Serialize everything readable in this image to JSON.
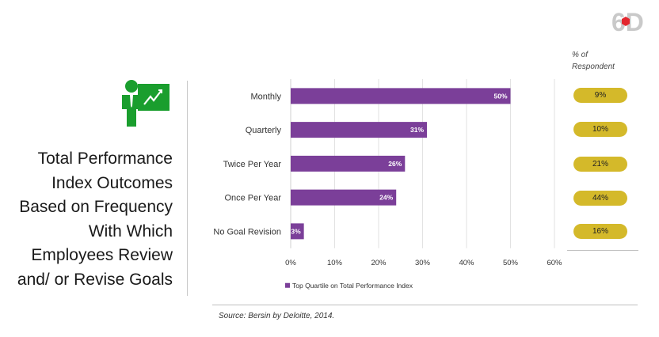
{
  "brand": {
    "logo_text": "6D",
    "accent": "#e3262e"
  },
  "icon": {
    "name": "presenter-icon",
    "color": "#1a9e2e"
  },
  "title_lines": [
    "Total Performance",
    "Index Outcomes",
    "Based on Frequency",
    "With Which",
    "Employees Review",
    "and/ or Revise Goals"
  ],
  "chart_data": {
    "type": "bar",
    "orientation": "horizontal",
    "categories": [
      "Monthly",
      "Quarterly",
      "Twice Per Year",
      "Once Per Year",
      "No Goal Revision"
    ],
    "series": [
      {
        "name": "Top Quartile on Total Performance Index",
        "values": [
          50,
          31,
          26,
          24,
          3
        ],
        "color": "#7b3f99"
      }
    ],
    "data_labels": [
      "50%",
      "31%",
      "26%",
      "24%",
      "3%"
    ],
    "xlim": [
      0,
      60
    ],
    "x_ticks": [
      0,
      10,
      20,
      30,
      40,
      50,
      60
    ],
    "x_tick_labels": [
      "0%",
      "10%",
      "20%",
      "30%",
      "40%",
      "50%",
      "60%"
    ],
    "grid": true,
    "legend_position": "bottom"
  },
  "respondent": {
    "header_line1": "% of",
    "header_line2": "Respondent",
    "values": [
      "9%",
      "10%",
      "21%",
      "44%",
      "16%"
    ],
    "color": "#d4b92a"
  },
  "source_text": "Source: Bersin by Deloitte, 2014."
}
